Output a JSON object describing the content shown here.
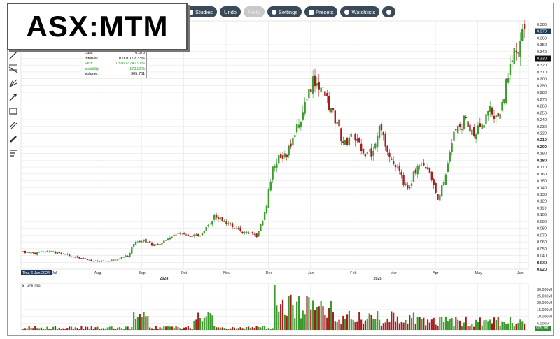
{
  "ticker": "ASX:MTM",
  "toolbar": {
    "studies": "Studies",
    "undo": "Undo",
    "redo": "Redo",
    "settings": "Settings",
    "presets": "Presets",
    "watchlists": "Watchlists"
  },
  "tools": [
    "line-tool-icon",
    "channel-tool-icon",
    "fan-tool-icon",
    "arrow-tool-icon",
    "rectangle-tool-icon",
    "parallel-lines-icon",
    "brush-tool-icon",
    "text-tool-icon"
  ],
  "info": {
    "last_label": "Last:",
    "last_value": "0.370",
    "interval_label": "Interval:",
    "interval_value": "0.0010 / 2.33%",
    "perf_label": "Perf:",
    "perf_value": "0.3260 / 740.91%",
    "volatility_label": "Volatility:",
    "volatility_value": "173.82%",
    "volume_label": "Volume:",
    "volume_value": "905,781"
  },
  "volume_label": "Volume",
  "colors": {
    "up": "#3d9a2f",
    "down": "#a51d1d",
    "grid": "#e4e4e4",
    "label_up": "#2e8b2e"
  },
  "chart_data": {
    "type": "candlestick",
    "x_labels": [
      {
        "label": "Thu, 6 Jun 2024",
        "month": 0
      },
      {
        "label": "Jul",
        "month": 0.8
      },
      {
        "label": "Aug",
        "month": 1.8
      },
      {
        "label": "Sep",
        "month": 2.85
      },
      {
        "label": "2024",
        "month": 3.35
      },
      {
        "label": "Oct",
        "month": 3.85
      },
      {
        "label": "Nov",
        "month": 4.85
      },
      {
        "label": "Dec",
        "month": 5.85
      },
      {
        "label": "Jan",
        "month": 6.85
      },
      {
        "label": "Feb",
        "month": 7.85
      },
      {
        "label": "2025",
        "month": 8.4
      },
      {
        "label": "Mar",
        "month": 8.8
      },
      {
        "label": "Apr",
        "month": 9.8
      },
      {
        "label": "May",
        "month": 10.8
      },
      {
        "label": "Jun",
        "month": 11.8
      }
    ],
    "price_ticks": [
      "0.380",
      "0.370",
      "0.360",
      "0.350",
      "0.340",
      "0.330",
      "0.320",
      "0.310",
      "0.300",
      "0.290",
      "0.280",
      "0.270",
      "0.260",
      "0.250",
      "0.240",
      "0.230",
      "0.220",
      "0.210",
      "0.200",
      "0.190",
      "0.180",
      "0.170",
      "0.160",
      "0.150",
      "0.140",
      "0.130",
      "0.120",
      "0.110",
      "0.100",
      "0.090",
      "0.080",
      "0.070",
      "0.060",
      "0.050",
      "0.040",
      "0.030",
      "0.020"
    ],
    "bold_ticks": [
      "0.210",
      "0.200",
      "0.180",
      "0.030",
      "0.020"
    ],
    "ylim": [
      0.02,
      0.385
    ],
    "last_price_label": "0.370",
    "secondary_price_label": "0.330",
    "volume_ticks": [
      "30.000M",
      "25.000M",
      "20.000M",
      "15.000M",
      "10.000M",
      "5.000M"
    ],
    "volume_ylim": [
      0,
      34
    ],
    "current_volume_label": "905,781",
    "price_path": [
      [
        0,
        0.045
      ],
      [
        0.3,
        0.043
      ],
      [
        0.6,
        0.046
      ],
      [
        0.9,
        0.044
      ],
      [
        1.2,
        0.04
      ],
      [
        1.5,
        0.036
      ],
      [
        1.9,
        0.032
      ],
      [
        2.2,
        0.031
      ],
      [
        2.5,
        0.034
      ],
      [
        2.8,
        0.04
      ],
      [
        2.95,
        0.06
      ],
      [
        3.2,
        0.063
      ],
      [
        3.5,
        0.054
      ],
      [
        3.8,
        0.062
      ],
      [
        4.1,
        0.072
      ],
      [
        4.4,
        0.069
      ],
      [
        4.7,
        0.068
      ],
      [
        4.9,
        0.085
      ],
      [
        5.1,
        0.098
      ],
      [
        5.4,
        0.088
      ],
      [
        5.7,
        0.078
      ],
      [
        6.0,
        0.072
      ],
      [
        6.2,
        0.069
      ],
      [
        6.35,
        0.09
      ],
      [
        6.45,
        0.11
      ],
      [
        6.6,
        0.165
      ],
      [
        6.8,
        0.185
      ],
      [
        7.0,
        0.19
      ],
      [
        7.2,
        0.215
      ],
      [
        7.35,
        0.24
      ],
      [
        7.55,
        0.27
      ],
      [
        7.7,
        0.295
      ],
      [
        7.9,
        0.285
      ],
      [
        8.05,
        0.27
      ],
      [
        8.2,
        0.25
      ],
      [
        8.35,
        0.23
      ],
      [
        8.5,
        0.2
      ],
      [
        8.7,
        0.215
      ],
      [
        8.9,
        0.205
      ],
      [
        9.1,
        0.185
      ],
      [
        9.3,
        0.195
      ],
      [
        9.45,
        0.225
      ],
      [
        9.6,
        0.205
      ],
      [
        9.8,
        0.175
      ],
      [
        10.0,
        0.16
      ],
      [
        10.2,
        0.135
      ],
      [
        10.4,
        0.165
      ],
      [
        10.6,
        0.17
      ],
      [
        10.8,
        0.16
      ],
      [
        11.0,
        0.125
      ],
      [
        11.2,
        0.15
      ],
      [
        11.35,
        0.205
      ],
      [
        11.55,
        0.23
      ],
      [
        11.75,
        0.24
      ],
      [
        11.95,
        0.215
      ],
      [
        12.15,
        0.23
      ],
      [
        12.35,
        0.255
      ],
      [
        12.55,
        0.24
      ],
      [
        12.7,
        0.26
      ],
      [
        12.85,
        0.3
      ],
      [
        13.0,
        0.33
      ],
      [
        13.15,
        0.35
      ],
      [
        13.3,
        0.37
      ]
    ]
  }
}
